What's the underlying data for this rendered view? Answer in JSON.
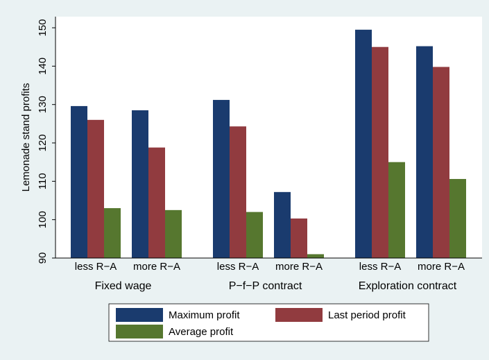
{
  "chart_data": {
    "type": "bar",
    "y_label": "Lemonade stand profits",
    "groups": [
      "Fixed wage",
      "P−f−P contract",
      "Exploration contract"
    ],
    "categories": [
      "less R−A",
      "more R−A",
      "less R−A",
      "more R−A",
      "less R−A",
      "more R−A"
    ],
    "series": [
      {
        "name": "Maximum profit",
        "color": "#1a3b6e",
        "values": [
          129.6,
          128.5,
          131.2,
          107.2,
          149.5,
          145.2
        ]
      },
      {
        "name": "Last period profit",
        "color": "#913b3f",
        "values": [
          126,
          118.8,
          124.3,
          100.3,
          145,
          139.8
        ]
      },
      {
        "name": "Average profit",
        "color": "#56772f",
        "values": [
          103,
          102.5,
          102,
          91,
          115,
          110.6
        ]
      }
    ],
    "ylim": [
      90,
      152.9
    ],
    "yticks": [
      90,
      100,
      110,
      120,
      130,
      140,
      150
    ],
    "grid": false
  }
}
